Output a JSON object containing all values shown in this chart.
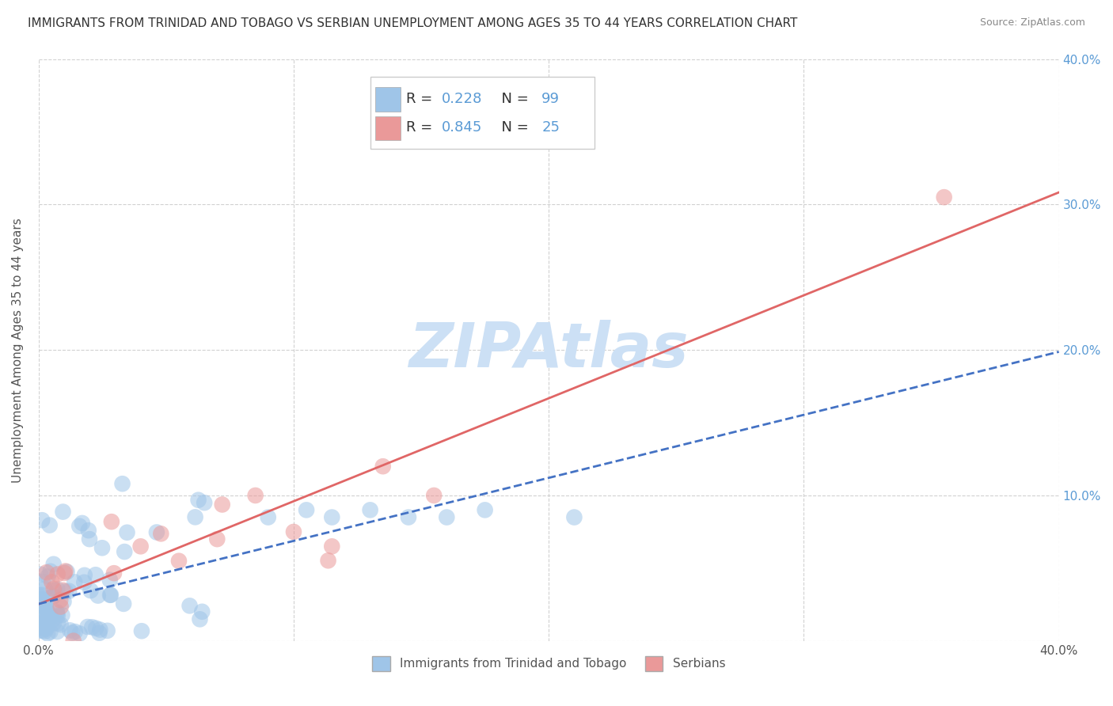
{
  "title": "IMMIGRANTS FROM TRINIDAD AND TOBAGO VS SERBIAN UNEMPLOYMENT AMONG AGES 35 TO 44 YEARS CORRELATION CHART",
  "source": "Source: ZipAtlas.com",
  "ylabel": "Unemployment Among Ages 35 to 44 years",
  "xlim": [
    0.0,
    0.4
  ],
  "ylim": [
    0.0,
    0.4
  ],
  "xticks": [
    0.0,
    0.1,
    0.2,
    0.3,
    0.4
  ],
  "yticks": [
    0.0,
    0.1,
    0.2,
    0.3,
    0.4
  ],
  "xticklabels": [
    "0.0%",
    "",
    "",
    "",
    "40.0%"
  ],
  "yticklabels": [
    "",
    "",
    "",
    "",
    ""
  ],
  "right_yticklabels": [
    "",
    "10.0%",
    "20.0%",
    "30.0%",
    "40.0%"
  ],
  "legend_labels": [
    "Immigrants from Trinidad and Tobago",
    "Serbians"
  ],
  "R_blue": 0.228,
  "N_blue": 99,
  "R_pink": 0.845,
  "N_pink": 25,
  "blue_color": "#9fc5e8",
  "pink_color": "#ea9999",
  "blue_line_color": "#4472c4",
  "pink_line_color": "#e06666",
  "watermark": "ZIPAtlas",
  "watermark_color": "#cce0f5",
  "background_color": "#ffffff",
  "title_fontsize": 11,
  "axis_label_fontsize": 11,
  "tick_fontsize": 11,
  "legend_fontsize": 13
}
